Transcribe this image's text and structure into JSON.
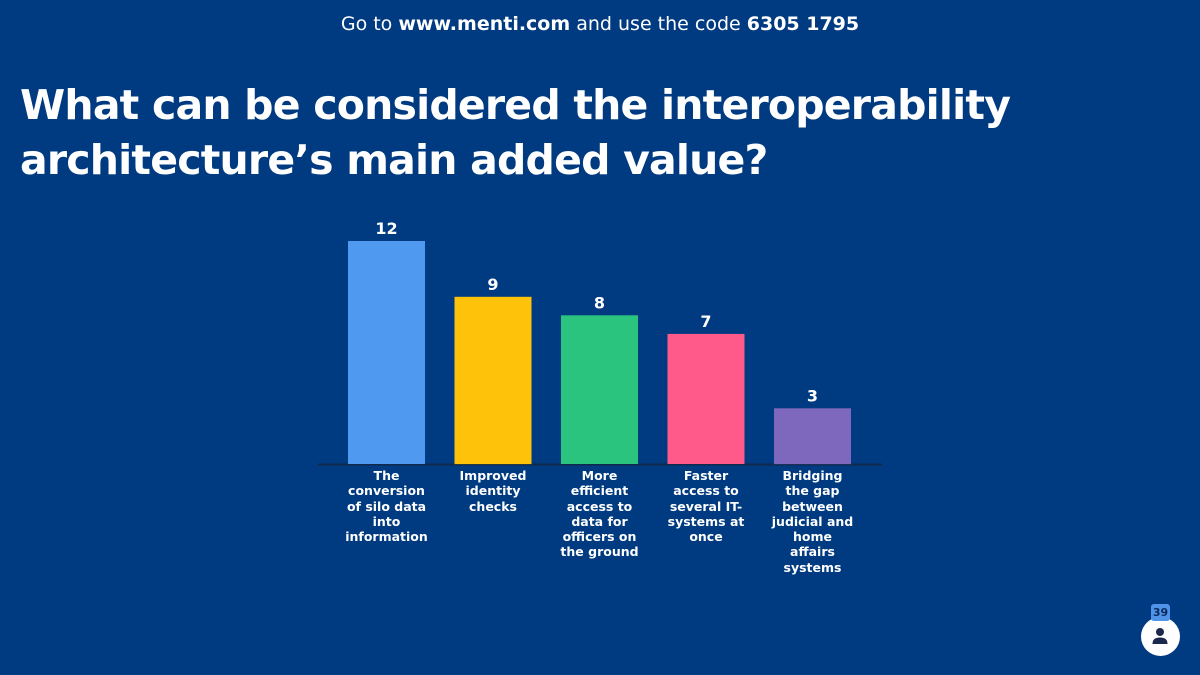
{
  "header": {
    "prefix": "Go to ",
    "url": "www.menti.com",
    "middle": " and use the code ",
    "code": "6305 1795"
  },
  "question": {
    "line1": "What can be considered the interoperability",
    "line2": "architecture’s main added value?"
  },
  "chart_data": {
    "type": "bar",
    "categories": [
      "The conversion of silo data into information",
      "Improved identity checks",
      "More efficient access to data for officers on the ground",
      "Faster access to several IT-systems at once",
      "Bridging the gap between judicial and home affairs systems"
    ],
    "category_lines": [
      [
        "The",
        "conversion",
        "of silo data",
        "into",
        "information"
      ],
      [
        "Improved",
        "identity",
        "checks"
      ],
      [
        "More",
        "efficient",
        "access to",
        "data for",
        "officers on",
        "the ground"
      ],
      [
        "Faster",
        "access to",
        "several IT-",
        "systems at",
        "once"
      ],
      [
        "Bridging",
        "the gap",
        "between",
        "judicial and",
        "home",
        "affairs",
        "systems"
      ]
    ],
    "values": [
      12,
      9,
      8,
      7,
      3
    ],
    "value_labels": [
      "12",
      "9",
      "8",
      "7",
      "3"
    ],
    "colors": [
      "#4f9af0",
      "#ffc20a",
      "#2bc47f",
      "#ff5a8a",
      "#7d68bd"
    ],
    "ylim": [
      0,
      12
    ],
    "grid": false,
    "legend": "none",
    "axis_color": "#0f2a4d"
  },
  "participants": {
    "count": "39",
    "icon": "person-icon"
  }
}
